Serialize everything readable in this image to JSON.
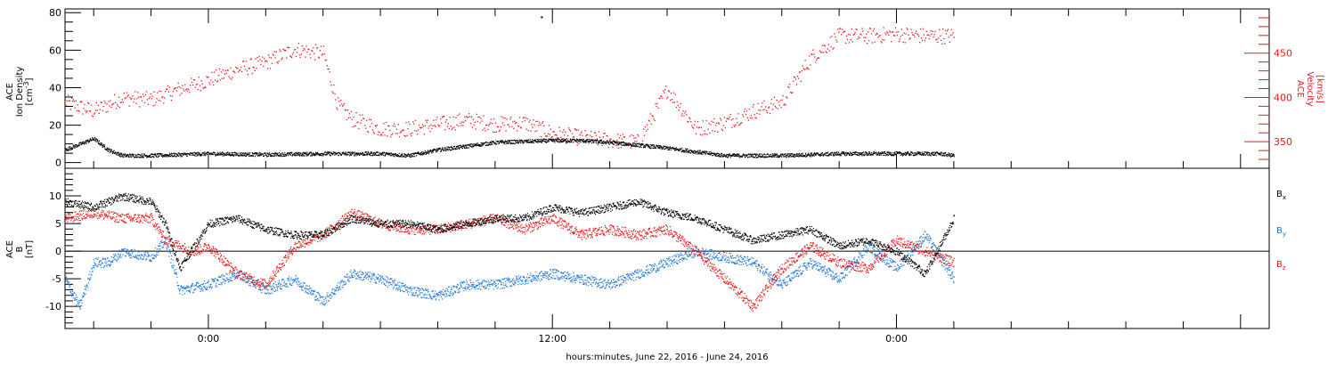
{
  "xlabel": "hours:minutes, June 22, 2016 - June 24, 2016",
  "x_tick_labels": [
    "0:00",
    "12:00",
    "0:00"
  ],
  "colors": {
    "black": "#000000",
    "red": "#e41a1c",
    "blue": "#1f77d4"
  },
  "chart_data": [
    {
      "type": "scatter",
      "panel": "plasma",
      "ylabel_left": [
        "ACE",
        "Ion Density",
        "[cm^-3]"
      ],
      "ylabel_right": [
        "ACE",
        "Velocity",
        "[km/s]"
      ],
      "left_ticks": [
        "0",
        "20",
        "40",
        "60",
        "80"
      ],
      "right_ticks": [
        "350",
        "400",
        "450"
      ],
      "ylim_left": [
        -3,
        82
      ],
      "ylim_right": [
        320,
        500
      ],
      "x_unit": "hours from June 22, 2016 00:00",
      "xlim": [
        -5,
        37
      ],
      "series": [
        {
          "axis": "left",
          "color": "black",
          "x": [
            -5,
            -4.5,
            -4,
            -3.5,
            -3,
            -2,
            0,
            2,
            4,
            6,
            7,
            8,
            10,
            12,
            13,
            14,
            16,
            18,
            20,
            22,
            23,
            25.5,
            26
          ],
          "y": [
            7,
            10,
            13,
            7,
            4,
            4,
            5,
            4.5,
            5,
            5,
            4,
            7,
            11,
            12,
            12,
            11,
            8,
            4,
            4,
            5,
            5,
            5,
            4
          ],
          "notes": [
            "outlier near (11.6, 78)"
          ]
        },
        {
          "axis": "right",
          "color": "red",
          "x": [
            -5,
            -4,
            -3,
            -2,
            -1,
            0,
            1,
            2,
            3,
            4,
            4.5,
            5,
            6,
            7,
            8,
            9,
            10,
            11,
            12,
            13,
            14,
            15,
            16,
            17,
            18,
            19,
            20,
            21,
            22,
            23,
            24,
            25,
            26
          ],
          "y": [
            395,
            385,
            400,
            398,
            410,
            420,
            432,
            440,
            455,
            450,
            392,
            376,
            365,
            365,
            370,
            375,
            370,
            372,
            360,
            355,
            352,
            350,
            410,
            365,
            372,
            385,
            395,
            445,
            470,
            470,
            472,
            470,
            470
          ]
        }
      ]
    },
    {
      "type": "scatter",
      "panel": "field",
      "ylabel_left": [
        "ACE",
        "B",
        "[nT]"
      ],
      "left_ticks": [
        "-10",
        "-5",
        "0",
        "5",
        "10"
      ],
      "ylim": [
        -14,
        15
      ],
      "x_unit": "hours from June 22, 2016 00:00",
      "xlim": [
        -5,
        37
      ],
      "legend": [
        "Bx",
        "By",
        "Bz"
      ],
      "series": [
        {
          "name": "Bx",
          "color": "black",
          "x": [
            -5,
            -4,
            -3,
            -2,
            -1.5,
            -1,
            0,
            1,
            2,
            3,
            4,
            5,
            6,
            7,
            8,
            9,
            10,
            11,
            12,
            13,
            14,
            15,
            16,
            17,
            18,
            19,
            20,
            21,
            22,
            23,
            24,
            25,
            26
          ],
          "y": [
            9,
            8,
            10,
            9,
            5,
            -3,
            5,
            6,
            4,
            3,
            3,
            6,
            5,
            5,
            4,
            5,
            6,
            6,
            8,
            7,
            8,
            9,
            7,
            6,
            4,
            2,
            3,
            4,
            1,
            2,
            0,
            -4,
            6
          ]
        },
        {
          "name": "By",
          "color": "blue",
          "x": [
            -5,
            -4.5,
            -4,
            -3.5,
            -3,
            -2,
            -1.5,
            -1,
            0,
            1,
            2,
            3,
            4,
            5,
            6,
            7,
            8,
            9,
            10,
            11,
            12,
            13,
            14,
            15,
            16,
            17,
            18,
            19,
            20,
            21,
            22,
            23,
            24,
            25,
            26
          ],
          "y": [
            -5,
            -10,
            -2,
            -2,
            0,
            -1,
            2,
            -7,
            -6,
            -4,
            -7,
            -5,
            -9,
            -4,
            -5,
            -7,
            -8,
            -6,
            -6,
            -5,
            -4,
            -5,
            -6,
            -4,
            -2,
            0,
            -1,
            -2,
            -6,
            -2,
            -5,
            1,
            -3,
            3,
            -5
          ]
        },
        {
          "name": "Bz",
          "color": "red",
          "x": [
            -5,
            -4,
            -3,
            -2,
            -1.5,
            -1,
            -0.5,
            0,
            1,
            2,
            3,
            4,
            5,
            6,
            7,
            8,
            9,
            10,
            11,
            12,
            13,
            14,
            15,
            16,
            17,
            18,
            19,
            20,
            21,
            22,
            23,
            24,
            25,
            26
          ],
          "y": [
            6,
            7,
            6,
            6,
            2,
            1,
            0,
            1,
            -4,
            -6,
            1,
            3,
            7,
            5,
            4,
            4,
            5,
            6,
            4,
            6,
            3,
            4,
            3,
            4,
            0,
            -5,
            -10,
            -3,
            1,
            -2,
            -3,
            2,
            0,
            -2
          ]
        }
      ]
    }
  ]
}
